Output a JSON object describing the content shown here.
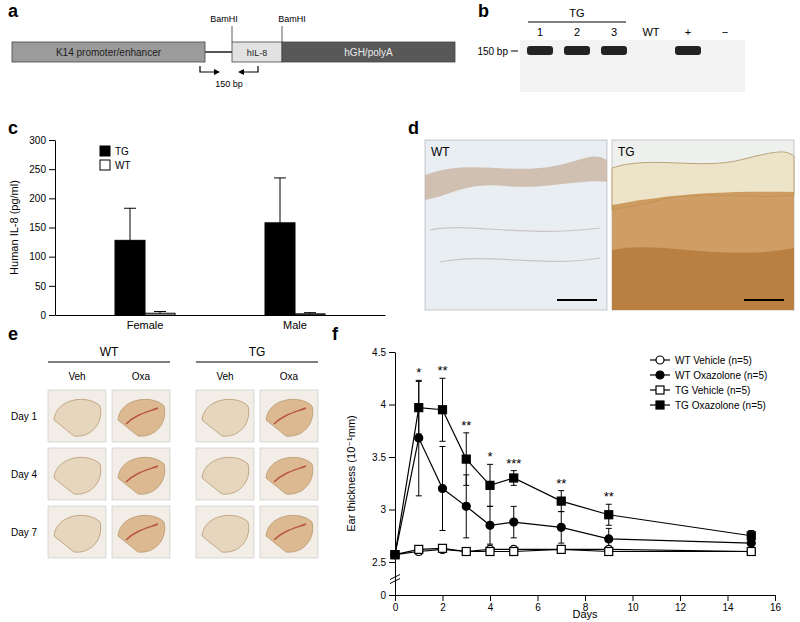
{
  "panel_labels": [
    "a",
    "b",
    "c",
    "d",
    "e",
    "f"
  ],
  "construct": {
    "segments": [
      "K14 promoter/enhancer",
      "hIL-8",
      "hGH/polyA"
    ],
    "sites": [
      "BamHI",
      "BamHI"
    ],
    "amplicon": "150 bp"
  },
  "gel": {
    "group": {
      "label": "TG",
      "lanes": 3
    },
    "lanes": [
      "1",
      "2",
      "3",
      "WT",
      "+",
      "−"
    ],
    "bands": [
      true,
      true,
      true,
      false,
      true,
      false
    ],
    "marker": "150 bp"
  },
  "histology": {
    "images": [
      "WT",
      "TG"
    ]
  },
  "ear_photos": {
    "groups": [
      "WT",
      "TG"
    ],
    "treatments": [
      "Veh",
      "Oxa"
    ],
    "days": [
      "Day 1",
      "Day 4",
      "Day 7"
    ]
  },
  "chart_data": [
    {
      "type": "bar",
      "ylabel": "Human IL-8 (pg/ml)",
      "categories": [
        "Female",
        "Male"
      ],
      "series": [
        {
          "name": "TG",
          "color": "#000000",
          "values": [
            128,
            158
          ],
          "errors": [
            55,
            77
          ]
        },
        {
          "name": "WT",
          "color": "#ffffff",
          "values": [
            3,
            2
          ],
          "errors": [
            3,
            2
          ]
        }
      ],
      "ylim": [
        0,
        300
      ],
      "yticks": [
        0,
        50,
        100,
        150,
        200,
        250,
        300
      ],
      "legend": "upper left"
    },
    {
      "type": "line",
      "xlabel": "Days",
      "ylabel": "Ear thickness (10⁻¹mm)",
      "x": [
        0,
        1,
        2,
        3,
        4,
        5,
        7,
        9,
        15
      ],
      "series": [
        {
          "name": "WT Vehicle (n=5)",
          "color": "#000000",
          "marker": "circle-open",
          "values": [
            2.57,
            2.6,
            2.62,
            2.6,
            2.62,
            2.62,
            2.62,
            2.62,
            2.6
          ],
          "errors": [
            0.02,
            0.03,
            0.03,
            0.03,
            0.03,
            0.03,
            0.03,
            0.03,
            0.03
          ]
        },
        {
          "name": "WT Oxazolone (n=5)",
          "color": "#000000",
          "marker": "circle",
          "values": [
            2.57,
            3.68,
            3.2,
            3.03,
            2.85,
            2.88,
            2.83,
            2.72,
            2.68
          ],
          "errors": [
            0.02,
            0.55,
            0.4,
            0.3,
            0.18,
            0.15,
            0.15,
            0.1,
            0.05
          ]
        },
        {
          "name": "TG Vehicle (n=5)",
          "color": "#000000",
          "marker": "square-open",
          "values": [
            2.57,
            2.62,
            2.63,
            2.6,
            2.6,
            2.6,
            2.62,
            2.6,
            2.6
          ],
          "errors": [
            0.02,
            0.03,
            0.03,
            0.03,
            0.03,
            0.03,
            0.03,
            0.03,
            0.03
          ]
        },
        {
          "name": "TG Oxazolone (n=5)",
          "color": "#000000",
          "marker": "square",
          "values": [
            2.57,
            3.97,
            3.95,
            3.48,
            3.23,
            3.3,
            3.08,
            2.95,
            2.75
          ],
          "errors": [
            0.02,
            0.25,
            0.3,
            0.25,
            0.2,
            0.07,
            0.1,
            0.1,
            0.05
          ]
        }
      ],
      "xlim": [
        0,
        16
      ],
      "xticks": [
        0,
        2,
        4,
        6,
        8,
        10,
        12,
        14,
        16
      ],
      "ylim": [
        0,
        4.5
      ],
      "yticks": [
        0,
        2.5,
        3,
        3.5,
        4,
        4.5
      ],
      "legend": "upper right",
      "annotations": [
        {
          "x": 1,
          "text": "*"
        },
        {
          "x": 2,
          "text": "**"
        },
        {
          "x": 3,
          "text": "**"
        },
        {
          "x": 4,
          "text": "*"
        },
        {
          "x": 5,
          "text": "***"
        },
        {
          "x": 7,
          "text": "**"
        },
        {
          "x": 9,
          "text": "**"
        }
      ]
    }
  ]
}
